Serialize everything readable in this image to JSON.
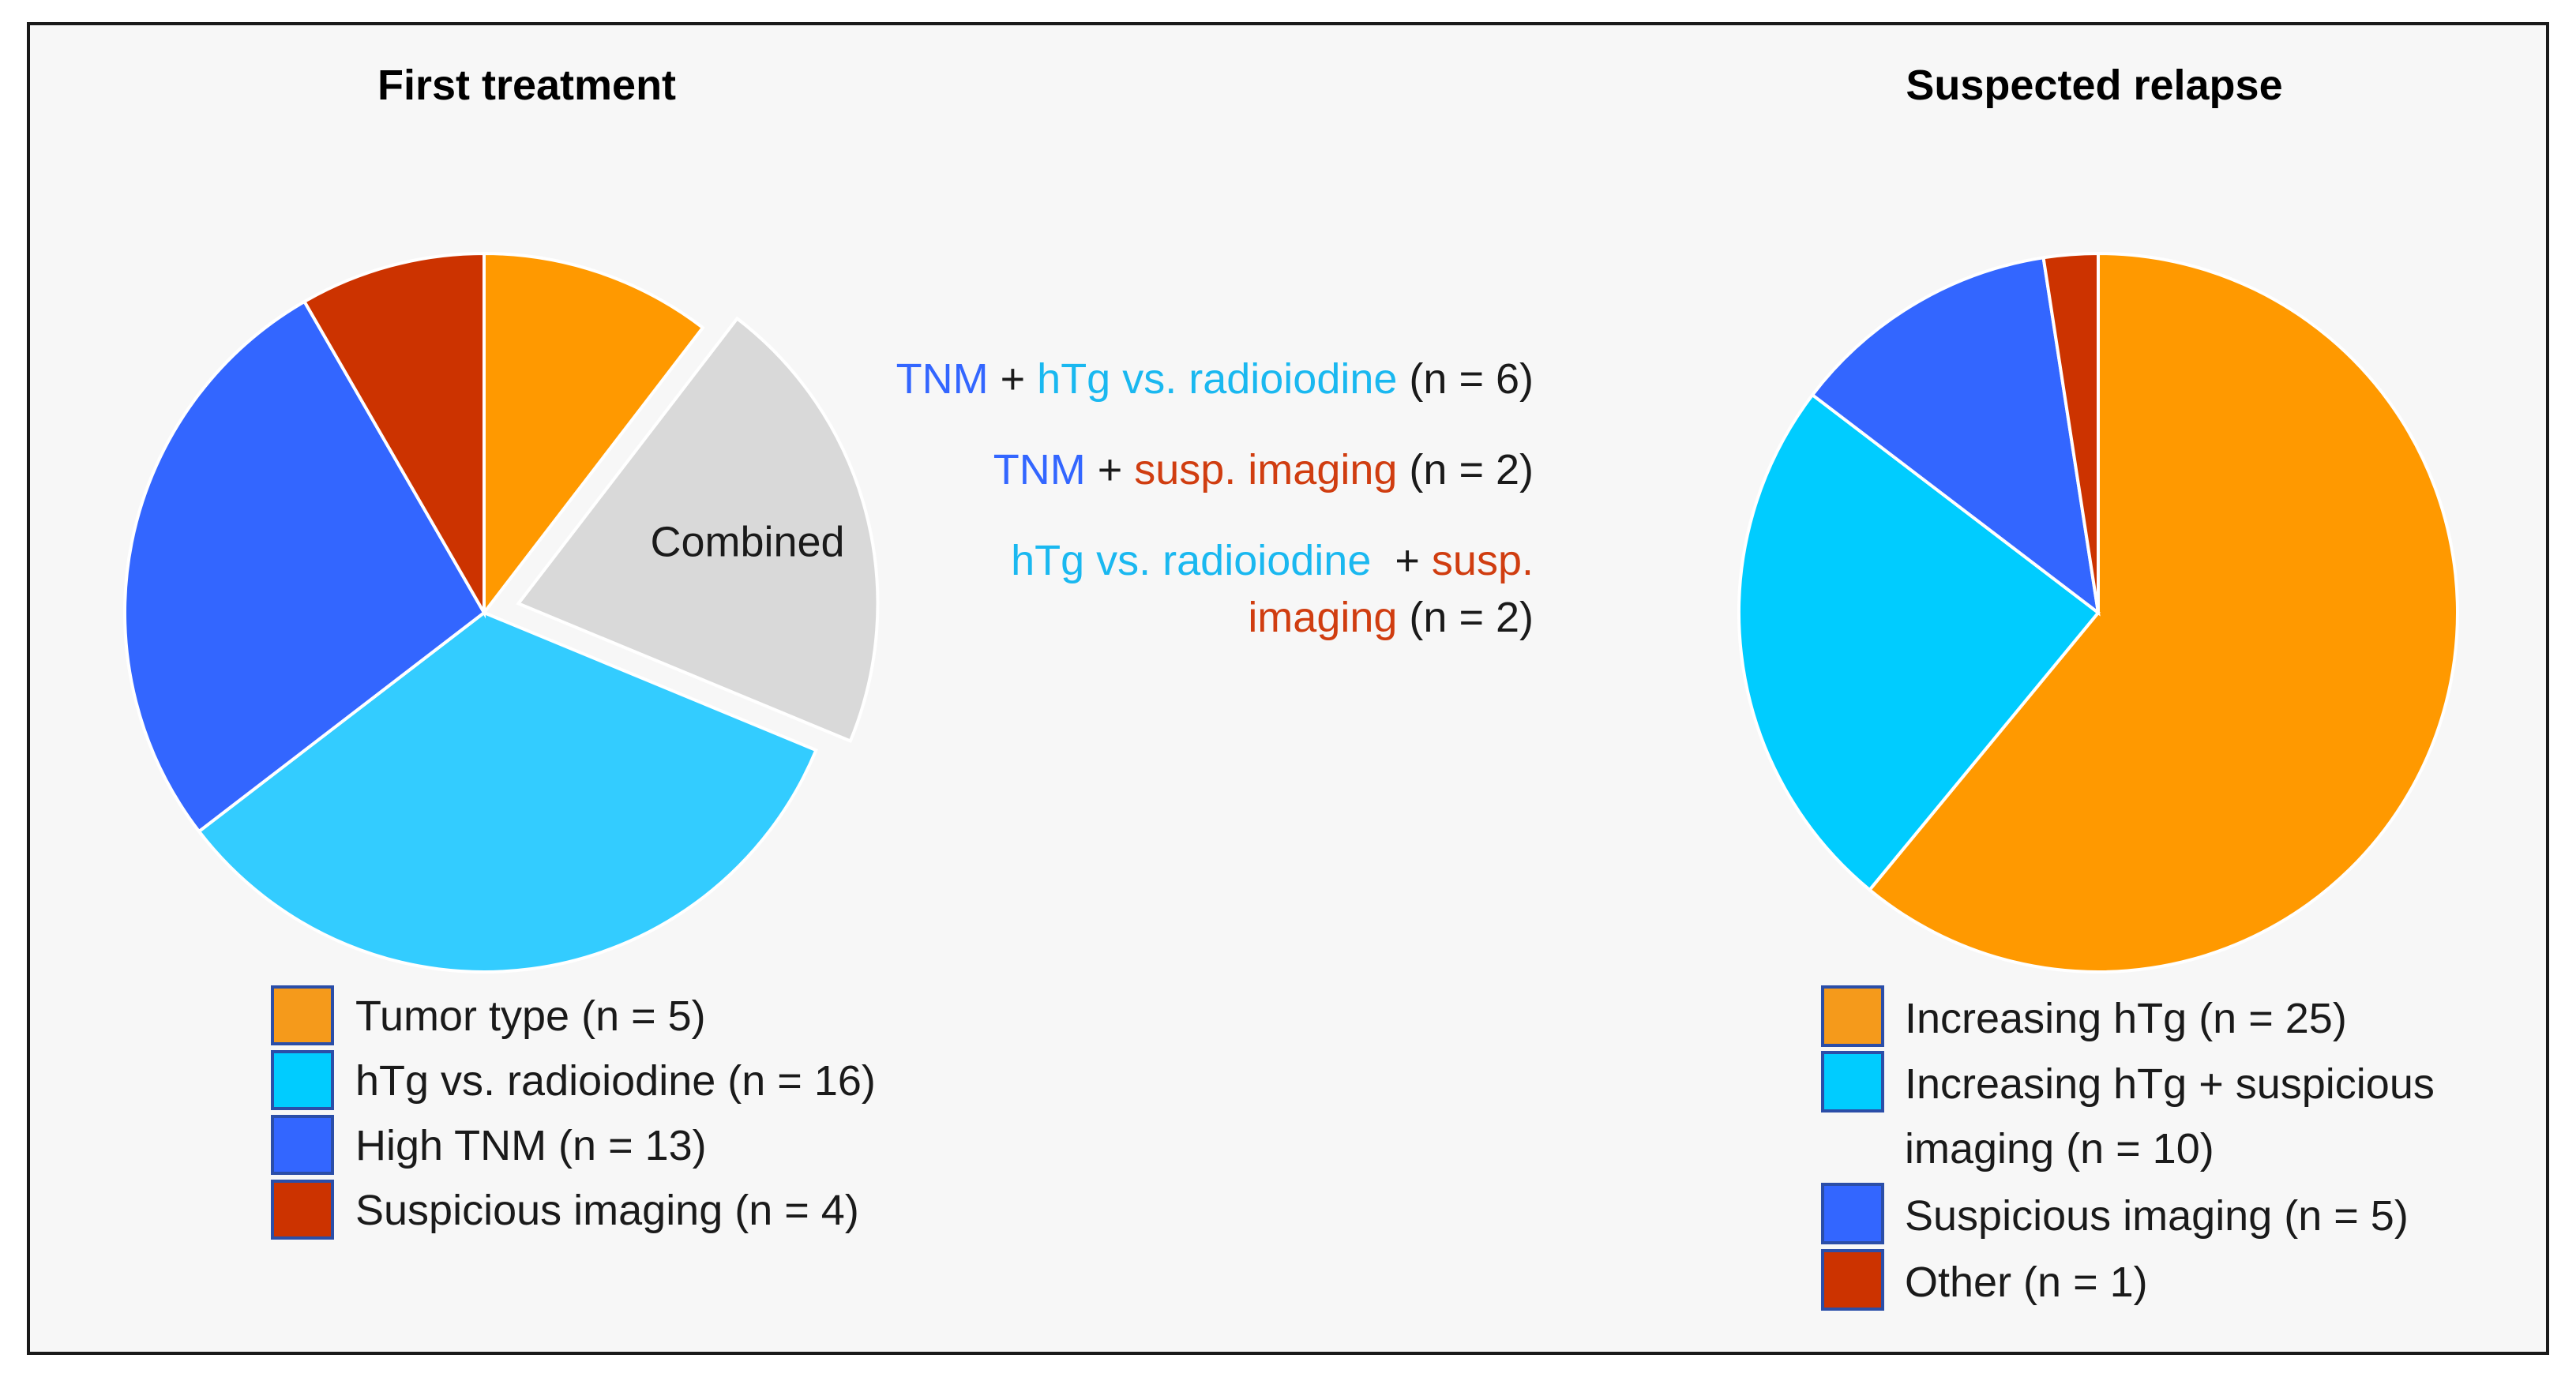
{
  "colors": {
    "orange": "#ff9900",
    "light_blue": "#33ccff",
    "cyan": "#00ccff",
    "blue": "#3366ff",
    "red": "#cc3300",
    "gray": "#d9d9d9",
    "legend_orange": "#f59a1b",
    "text_blue": "#3366ff",
    "text_cyan": "#1ab8f0",
    "text_red": "#d03d10",
    "text_black": "#1a1a1a"
  },
  "chart_data": [
    {
      "type": "pie",
      "title": "First treatment",
      "slices": [
        {
          "label": "Tumor type (n = 5)",
          "value": 5,
          "color": "#ff9900"
        },
        {
          "label": "Combined",
          "value": 10,
          "color": "#d9d9d9",
          "exploded": true
        },
        {
          "label": "hTg vs. radioiodine (n = 16)",
          "value": 16,
          "color": "#33ccff"
        },
        {
          "label": "High TNM (n = 13)",
          "value": 13,
          "color": "#3366ff"
        },
        {
          "label": "Suspicious imaging (n = 4)",
          "value": 4,
          "color": "#cc3300"
        }
      ],
      "legend": [
        {
          "label": "Tumor type (n = 5)",
          "color": "#f59a1b"
        },
        {
          "label": "hTg vs. radioiodine (n = 16)",
          "color": "#00ccff"
        },
        {
          "label": "High TNM (n = 13)",
          "color": "#3366ff"
        },
        {
          "label": "Suspicious imaging (n = 4)",
          "color": "#cc3300"
        }
      ],
      "annotations": [
        {
          "parts": [
            {
              "text": "TNM",
              "color": "#3366ff"
            },
            {
              "text": " + ",
              "color": "#1a1a1a"
            },
            {
              "text": "hTg vs. radioiodine",
              "color": "#1ab8f0"
            },
            {
              "text": " (n = 6)",
              "color": "#1a1a1a"
            }
          ]
        },
        {
          "parts": [
            {
              "text": "TNM",
              "color": "#3366ff"
            },
            {
              "text": " + ",
              "color": "#1a1a1a"
            },
            {
              "text": "susp. imaging",
              "color": "#d03d10"
            },
            {
              "text": " (n = 2)",
              "color": "#1a1a1a"
            }
          ]
        },
        {
          "parts": [
            {
              "text": "hTg vs. radioiodine",
              "color": "#1ab8f0"
            },
            {
              "text": "  + ",
              "color": "#1a1a1a"
            },
            {
              "text": "susp.",
              "color": "#d03d10"
            }
          ]
        },
        {
          "parts": [
            {
              "text": "imaging",
              "color": "#d03d10"
            },
            {
              "text": " (n = 2)",
              "color": "#1a1a1a"
            }
          ]
        }
      ]
    },
    {
      "type": "pie",
      "title": "Suspected relapse",
      "slices": [
        {
          "label": "Increasing hTg (n = 25)",
          "value": 25,
          "color": "#ff9900"
        },
        {
          "label": "Increasing hTg + suspicious imaging (n = 10)",
          "value": 10,
          "color": "#00ccff"
        },
        {
          "label": "Suspicious imaging (n = 5)",
          "value": 5,
          "color": "#3366ff"
        },
        {
          "label": "Other (n = 1)",
          "value": 1,
          "color": "#cc3300"
        }
      ],
      "legend": [
        {
          "lines": [
            "Increasing hTg (n = 25)"
          ],
          "color": "#f59a1b"
        },
        {
          "lines": [
            "Increasing hTg + suspicious",
            "imaging (n = 10)"
          ],
          "color": "#00ccff"
        },
        {
          "lines": [
            "Suspicious imaging (n = 5)"
          ],
          "color": "#3366ff"
        },
        {
          "lines": [
            "Other (n = 1)"
          ],
          "color": "#cc3300"
        }
      ]
    }
  ]
}
